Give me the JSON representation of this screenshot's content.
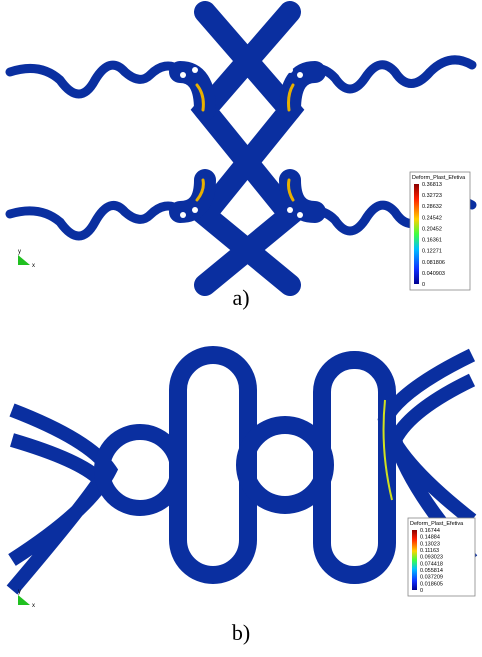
{
  "panels": [
    {
      "label": "a)",
      "axis_y": "y",
      "axis_x": "x",
      "legend": {
        "title": "Deform_Plast_Efetiva",
        "ticks": [
          "0.36813",
          "0.32723",
          "0.28632",
          "0.24542",
          "0.20452",
          "0.16361",
          "0.12271",
          "0.081806",
          "0.040903",
          "0"
        ]
      }
    },
    {
      "label": "b)",
      "axis_y": "y",
      "axis_x": "x",
      "legend": {
        "title": "Deform_Plast_Efetiva",
        "ticks": [
          "0.16744",
          "0.14884",
          "0.13023",
          "0.11163",
          "0.093023",
          "0.074418",
          "0.055814",
          "0.037209",
          "0.018605",
          "0"
        ]
      }
    }
  ]
}
